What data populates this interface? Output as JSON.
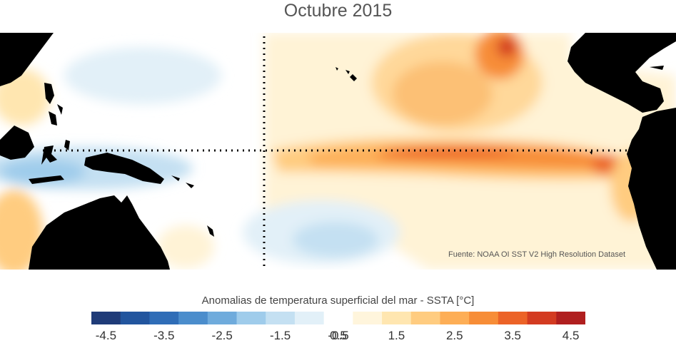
{
  "title": "Octubre 2015",
  "source": "Fuente: NOAA OI SST V2 High Resolution Dataset",
  "colorbar": {
    "label": "Anomalias de temperatura superficial del mar - SSTA  [°C]",
    "colors": [
      "#1f3b78",
      "#22559e",
      "#2f6db7",
      "#4b8dcc",
      "#6fabdc",
      "#9fcceb",
      "#c4e0f2",
      "#e2f0f8",
      "#ffffff",
      "#fff5dc",
      "#ffe6b0",
      "#ffcc80",
      "#fdae56",
      "#f78d37",
      "#ec6327",
      "#d33b21",
      "#b01f1f"
    ],
    "ticks": [
      "-4.5",
      "-3.5",
      "-2.5",
      "-1.5",
      "-0.5",
      "0.5",
      "1.5",
      "2.5",
      "3.5",
      "4.5"
    ]
  },
  "map": {
    "region": "Pacífico tropical",
    "land_color": "#000000",
    "reference_lines": [
      "ecuador",
      "180°"
    ]
  }
}
